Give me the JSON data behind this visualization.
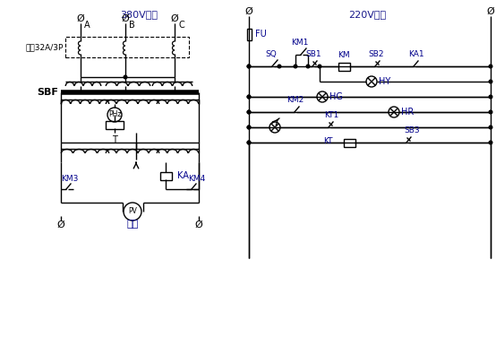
{
  "title_left": "380V输入",
  "title_right": "220V输入",
  "label_power": "电源32A/3P",
  "label_sbf": "SBF",
  "label_out": "输出",
  "label_A": "A",
  "label_B": "B",
  "label_C": "C",
  "label_FU": "FU",
  "label_KM1": "KM1",
  "label_SQ": "SQ",
  "label_SB1": "SB1",
  "label_KM": "KM",
  "label_SB2": "SB2",
  "label_KA1": "KA1",
  "label_HY": "HY",
  "label_HG": "HG",
  "label_KM2": "KM2",
  "label_HR": "HR",
  "label_KT1": "KT1",
  "label_KT": "KT",
  "label_SB3": "SB3",
  "label_KA": "KA",
  "label_KM3": "KM3",
  "label_KM4": "KM4",
  "label_T": "T",
  "label_PHz": "PHz",
  "label_PV": "PV",
  "bg_color": "#ffffff",
  "lc": "#000000",
  "bc": "#00008b",
  "tc": "#1a1a8c"
}
